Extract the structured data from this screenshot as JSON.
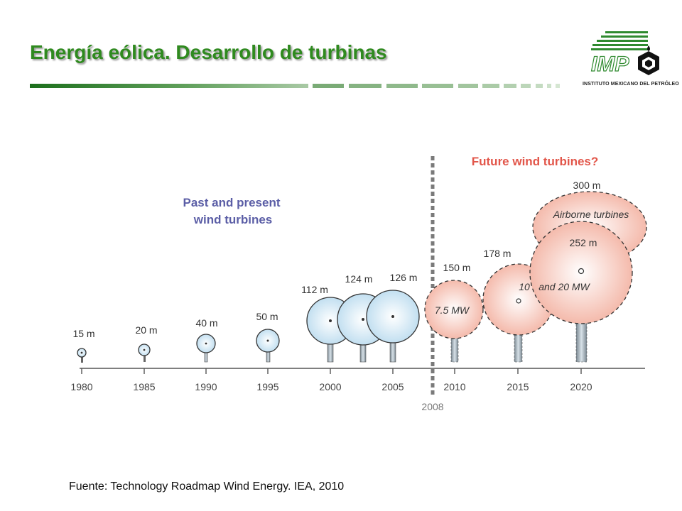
{
  "slide": {
    "title": "Energía eólica. Desarrollo de turbinas",
    "source": "Fuente: Technology Roadmap Wind Energy. IEA, 2010"
  },
  "logo": {
    "initials": "IMP",
    "caption": "INSTITUTO MEXICANO DEL PETRÓLEO"
  },
  "diagram": {
    "past_label_line1": "Past and present",
    "past_label_line2": "wind turbines",
    "future_label": "Future wind turbines?",
    "divider_year": "2008",
    "years": [
      "1980",
      "1985",
      "1990",
      "1995",
      "2000",
      "2005",
      "2010",
      "2015",
      "2020"
    ],
    "turbines": [
      {
        "year": "1980",
        "diameter": "15 m",
        "era": "past"
      },
      {
        "year": "1985",
        "diameter": "20 m",
        "era": "past"
      },
      {
        "year": "1990",
        "diameter": "40 m",
        "era": "past"
      },
      {
        "year": "1995",
        "diameter": "50 m",
        "era": "past"
      },
      {
        "year": "2000",
        "diameter": "112 m",
        "era": "past"
      },
      {
        "year": "2003",
        "diameter": "124 m",
        "era": "past"
      },
      {
        "year": "2005",
        "diameter": "126 m",
        "era": "past"
      },
      {
        "year": "2010",
        "diameter": "150 m",
        "era": "future",
        "power": "7.5 MW"
      },
      {
        "year": "2015",
        "diameter": "178 m",
        "era": "future"
      },
      {
        "year": "2020",
        "diameter": "252 m",
        "era": "future",
        "power_line": "10 and 20 MW"
      },
      {
        "year": "2020",
        "diameter": "300 m",
        "era": "future",
        "note": "Airborne turbines"
      }
    ],
    "power_2010": "7.5 MW",
    "power_2015_2020_a": "10",
    "power_2015_2020_b": "and 20 MW",
    "airborne": "Airborne turbines",
    "colors": {
      "past_fill": "#cfe6f3",
      "future_fill": "#f6c9bd",
      "past_label": "#5b5ea6",
      "future_label": "#e2564a",
      "title": "#2f8a1f"
    }
  }
}
